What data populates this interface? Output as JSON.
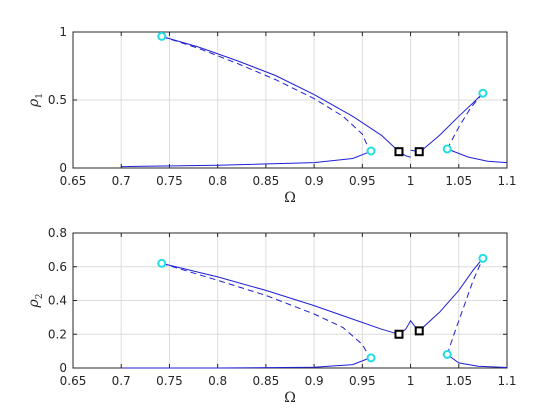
{
  "chart_data": [
    {
      "type": "line",
      "panel": "top",
      "xlabel": "Ω",
      "ylabel": "ρ",
      "ylabel_sub": "1",
      "xlim": [
        0.65,
        1.1
      ],
      "ylim": [
        0,
        1
      ],
      "xticks": [
        "0.65",
        "0.7",
        "0.75",
        "0.8",
        "0.85",
        "0.9",
        "0.95",
        "1",
        "1.05",
        "1.1"
      ],
      "yticks": [
        "0",
        "0.5",
        "1"
      ],
      "grid": true,
      "series": [
        {
          "style": "solid",
          "points": [
            [
              0.742,
              0.968
            ],
            [
              0.78,
              0.89
            ],
            [
              0.82,
              0.79
            ],
            [
              0.86,
              0.68
            ],
            [
              0.9,
              0.54
            ],
            [
              0.94,
              0.38
            ],
            [
              0.97,
              0.24
            ],
            [
              0.988,
              0.12
            ]
          ]
        },
        {
          "style": "dashed",
          "points": [
            [
              0.742,
              0.968
            ],
            [
              0.78,
              0.88
            ],
            [
              0.82,
              0.77
            ],
            [
              0.86,
              0.65
            ],
            [
              0.9,
              0.51
            ],
            [
              0.93,
              0.38
            ],
            [
              0.95,
              0.25
            ],
            [
              0.958,
              0.12
            ]
          ]
        },
        {
          "style": "solid",
          "points": [
            [
              0.7,
              0.01
            ],
            [
              0.8,
              0.02
            ],
            [
              0.9,
              0.04
            ],
            [
              0.94,
              0.07
            ],
            [
              0.958,
              0.12
            ]
          ]
        },
        {
          "style": "solid",
          "points": [
            [
              0.988,
              0.12
            ],
            [
              0.995,
              0.09
            ],
            [
              1.0,
              0.08
            ]
          ]
        },
        {
          "style": "solid",
          "points": [
            [
              1.0,
              0.13
            ],
            [
              1.01,
              0.12
            ],
            [
              1.03,
              0.24
            ],
            [
              1.05,
              0.38
            ],
            [
              1.065,
              0.48
            ],
            [
              1.075,
              0.55
            ]
          ]
        },
        {
          "style": "dashed",
          "points": [
            [
              1.038,
              0.14
            ],
            [
              1.05,
              0.3
            ],
            [
              1.062,
              0.44
            ],
            [
              1.075,
              0.55
            ]
          ]
        },
        {
          "style": "solid",
          "points": [
            [
              1.038,
              0.14
            ],
            [
              1.06,
              0.08
            ],
            [
              1.08,
              0.05
            ],
            [
              1.1,
              0.04
            ]
          ]
        }
      ],
      "markers": [
        {
          "kind": "cyan-circle",
          "x": 0.742,
          "y": 0.968
        },
        {
          "kind": "cyan-circle",
          "x": 0.959,
          "y": 0.125
        },
        {
          "kind": "cyan-circle",
          "x": 1.038,
          "y": 0.14
        },
        {
          "kind": "cyan-circle",
          "x": 1.075,
          "y": 0.55
        },
        {
          "kind": "black-square",
          "x": 0.988,
          "y": 0.12
        },
        {
          "kind": "black-square",
          "x": 1.009,
          "y": 0.12
        }
      ]
    },
    {
      "type": "line",
      "panel": "bottom",
      "xlabel": "Ω",
      "ylabel": "ρ",
      "ylabel_sub": "2",
      "xlim": [
        0.65,
        1.1
      ],
      "ylim": [
        0,
        0.8
      ],
      "xticks": [
        "0.65",
        "0.7",
        "0.75",
        "0.8",
        "0.85",
        "0.9",
        "0.95",
        "1",
        "1.05",
        "1.1"
      ],
      "yticks": [
        "0",
        "0.2",
        "0.4",
        "0.6",
        "0.8"
      ],
      "grid": true,
      "series": [
        {
          "style": "solid",
          "points": [
            [
              0.742,
              0.62
            ],
            [
              0.8,
              0.54
            ],
            [
              0.85,
              0.46
            ],
            [
              0.9,
              0.37
            ],
            [
              0.94,
              0.29
            ],
            [
              0.97,
              0.23
            ],
            [
              0.988,
              0.2
            ]
          ]
        },
        {
          "style": "dashed",
          "points": [
            [
              0.742,
              0.62
            ],
            [
              0.8,
              0.52
            ],
            [
              0.85,
              0.43
            ],
            [
              0.9,
              0.32
            ],
            [
              0.93,
              0.24
            ],
            [
              0.95,
              0.14
            ],
            [
              0.958,
              0.06
            ]
          ]
        },
        {
          "style": "solid",
          "points": [
            [
              0.7,
              0.0
            ],
            [
              0.8,
              0.0
            ],
            [
              0.9,
              0.005
            ],
            [
              0.94,
              0.02
            ],
            [
              0.958,
              0.06
            ]
          ]
        },
        {
          "style": "solid",
          "points": [
            [
              0.988,
              0.2
            ],
            [
              0.995,
              0.23
            ],
            [
              1.0,
              0.28
            ],
            [
              1.004,
              0.25
            ],
            [
              1.009,
              0.22
            ],
            [
              1.03,
              0.33
            ],
            [
              1.05,
              0.46
            ],
            [
              1.065,
              0.58
            ],
            [
              1.075,
              0.65
            ]
          ]
        },
        {
          "style": "dashed",
          "points": [
            [
              1.038,
              0.08
            ],
            [
              1.045,
              0.2
            ],
            [
              1.055,
              0.36
            ],
            [
              1.065,
              0.52
            ],
            [
              1.075,
              0.65
            ]
          ]
        },
        {
          "style": "solid",
          "points": [
            [
              1.038,
              0.08
            ],
            [
              1.05,
              0.03
            ],
            [
              1.07,
              0.01
            ],
            [
              1.1,
              0.003
            ]
          ]
        }
      ],
      "markers": [
        {
          "kind": "cyan-circle",
          "x": 0.742,
          "y": 0.62
        },
        {
          "kind": "cyan-circle",
          "x": 0.959,
          "y": 0.06
        },
        {
          "kind": "cyan-circle",
          "x": 1.038,
          "y": 0.08
        },
        {
          "kind": "cyan-circle",
          "x": 1.075,
          "y": 0.65
        },
        {
          "kind": "black-square",
          "x": 0.988,
          "y": 0.2
        },
        {
          "kind": "black-square",
          "x": 1.009,
          "y": 0.22
        }
      ]
    }
  ]
}
